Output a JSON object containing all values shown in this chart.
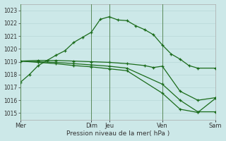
{
  "background_color": "#cce8e8",
  "grid_color": "#b8d8d8",
  "line_color": "#1a6b1a",
  "xlabel": "Pression niveau de la mer( hPa )",
  "ylim": [
    1014.5,
    1023.5
  ],
  "xlim": [
    0,
    11
  ],
  "yticks": [
    1015,
    1016,
    1017,
    1018,
    1019,
    1020,
    1021,
    1022,
    1023
  ],
  "xtick_labels": [
    "Mer",
    "Dim",
    "Jeu",
    "Ven",
    "Sam"
  ],
  "xtick_positions": [
    0,
    4,
    5,
    8,
    11
  ],
  "vline_positions": [
    0,
    4,
    5,
    8,
    11
  ],
  "line1_x": [
    0,
    0.5,
    1,
    1.5,
    2,
    2.5,
    3,
    3.5,
    4,
    4.5,
    5,
    5.5,
    6,
    6.5,
    7,
    7.5,
    8,
    8.5,
    9,
    9.5,
    10,
    11
  ],
  "line1_y": [
    1017.4,
    1018.0,
    1018.7,
    1019.1,
    1019.5,
    1019.85,
    1020.5,
    1020.9,
    1021.3,
    1022.3,
    1022.5,
    1022.25,
    1022.2,
    1021.8,
    1021.5,
    1021.1,
    1020.3,
    1019.6,
    1019.2,
    1018.7,
    1018.5,
    1018.5
  ],
  "line2_x": [
    0,
    1,
    2,
    3,
    4,
    5,
    6,
    7,
    7.5,
    8,
    9,
    10,
    11
  ],
  "line2_y": [
    1019.05,
    1019.1,
    1019.1,
    1019.05,
    1019.0,
    1018.95,
    1018.85,
    1018.7,
    1018.55,
    1018.65,
    1016.7,
    1016.0,
    1016.2
  ],
  "line3_x": [
    0,
    1,
    2,
    3,
    4,
    5,
    6,
    8,
    9,
    10,
    11
  ],
  "line3_y": [
    1019.05,
    1019.0,
    1018.95,
    1018.85,
    1018.75,
    1018.65,
    1018.5,
    1017.25,
    1016.0,
    1015.1,
    1015.1
  ],
  "line4_x": [
    0,
    1,
    2,
    3,
    4,
    5,
    6,
    8,
    9,
    10,
    11
  ],
  "line4_y": [
    1019.05,
    1018.95,
    1018.85,
    1018.7,
    1018.6,
    1018.45,
    1018.3,
    1016.55,
    1015.3,
    1015.05,
    1016.15
  ]
}
